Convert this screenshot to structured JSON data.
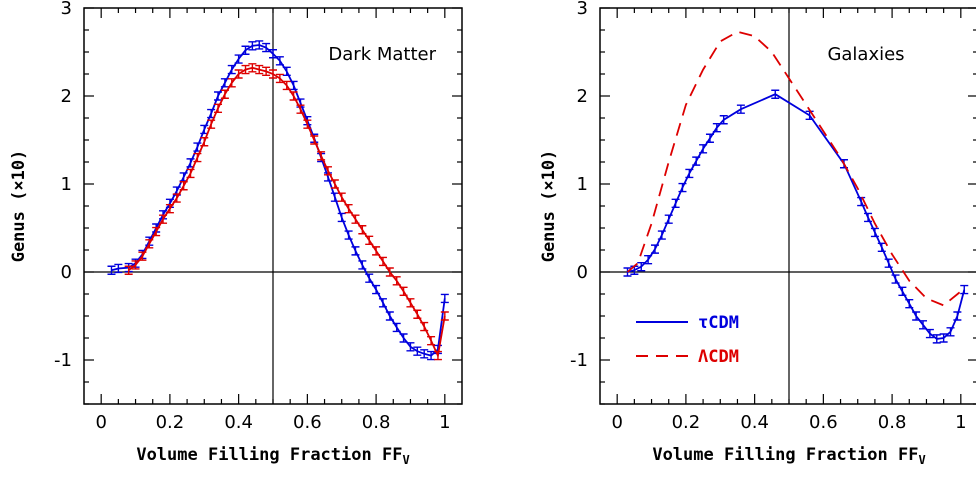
{
  "chart_data": [
    {
      "type": "line",
      "title": "Dark Matter",
      "xlabel": "Volume Filling Fraction FF",
      "xlabel_sub": "V",
      "ylabel": "Genus (×10)",
      "xlim": [
        -0.05,
        1.05
      ],
      "ylim": [
        -1.5,
        3
      ],
      "x_ticks": [
        0,
        0.2,
        0.4,
        0.6,
        0.8,
        1
      ],
      "x_tick_labels": [
        "0",
        "0.2",
        "0.4",
        "0.6",
        "0.8",
        "1"
      ],
      "y_ticks": [
        -1,
        0,
        1,
        2,
        3
      ],
      "y_tick_labels": [
        "-1",
        "0",
        "1",
        "2",
        "3"
      ],
      "reference_lines": {
        "y": 0,
        "x": 0.5
      },
      "series": [
        {
          "color": "#0000dd",
          "style": "solid",
          "errorbars": true,
          "points": [
            [
              0.03,
              0.02
            ],
            [
              0.05,
              0.04
            ],
            [
              0.08,
              0.05
            ],
            [
              0.1,
              0.1
            ],
            [
              0.12,
              0.2
            ],
            [
              0.14,
              0.35
            ],
            [
              0.16,
              0.5
            ],
            [
              0.18,
              0.65
            ],
            [
              0.2,
              0.78
            ],
            [
              0.22,
              0.92
            ],
            [
              0.24,
              1.08
            ],
            [
              0.26,
              1.24
            ],
            [
              0.28,
              1.42
            ],
            [
              0.3,
              1.62
            ],
            [
              0.32,
              1.8
            ],
            [
              0.34,
              2.0
            ],
            [
              0.36,
              2.15
            ],
            [
              0.38,
              2.3
            ],
            [
              0.4,
              2.42
            ],
            [
              0.42,
              2.52
            ],
            [
              0.44,
              2.57
            ],
            [
              0.46,
              2.58
            ],
            [
              0.48,
              2.55
            ],
            [
              0.5,
              2.48
            ],
            [
              0.52,
              2.4
            ],
            [
              0.54,
              2.28
            ],
            [
              0.56,
              2.12
            ],
            [
              0.58,
              1.92
            ],
            [
              0.6,
              1.72
            ],
            [
              0.62,
              1.52
            ],
            [
              0.64,
              1.3
            ],
            [
              0.66,
              1.08
            ],
            [
              0.68,
              0.85
            ],
            [
              0.7,
              0.62
            ],
            [
              0.72,
              0.42
            ],
            [
              0.74,
              0.24
            ],
            [
              0.76,
              0.08
            ],
            [
              0.78,
              -0.07
            ],
            [
              0.8,
              -0.2
            ],
            [
              0.82,
              -0.35
            ],
            [
              0.84,
              -0.5
            ],
            [
              0.86,
              -0.63
            ],
            [
              0.88,
              -0.75
            ],
            [
              0.9,
              -0.85
            ],
            [
              0.92,
              -0.9
            ],
            [
              0.94,
              -0.93
            ],
            [
              0.96,
              -0.95
            ],
            [
              0.98,
              -0.88
            ],
            [
              1.0,
              -0.3
            ]
          ]
        },
        {
          "color": "#dd0000",
          "style": "solid",
          "errorbars": true,
          "points": [
            [
              0.08,
              0.02
            ],
            [
              0.1,
              0.08
            ],
            [
              0.12,
              0.18
            ],
            [
              0.14,
              0.32
            ],
            [
              0.16,
              0.46
            ],
            [
              0.18,
              0.6
            ],
            [
              0.2,
              0.72
            ],
            [
              0.22,
              0.84
            ],
            [
              0.24,
              0.98
            ],
            [
              0.26,
              1.12
            ],
            [
              0.28,
              1.3
            ],
            [
              0.3,
              1.48
            ],
            [
              0.32,
              1.68
            ],
            [
              0.34,
              1.86
            ],
            [
              0.36,
              2.02
            ],
            [
              0.38,
              2.15
            ],
            [
              0.4,
              2.25
            ],
            [
              0.42,
              2.3
            ],
            [
              0.44,
              2.32
            ],
            [
              0.46,
              2.3
            ],
            [
              0.48,
              2.28
            ],
            [
              0.5,
              2.25
            ],
            [
              0.52,
              2.2
            ],
            [
              0.54,
              2.12
            ],
            [
              0.56,
              2.0
            ],
            [
              0.58,
              1.85
            ],
            [
              0.6,
              1.68
            ],
            [
              0.62,
              1.5
            ],
            [
              0.64,
              1.32
            ],
            [
              0.66,
              1.15
            ],
            [
              0.68,
              1.0
            ],
            [
              0.7,
              0.85
            ],
            [
              0.72,
              0.72
            ],
            [
              0.74,
              0.6
            ],
            [
              0.76,
              0.48
            ],
            [
              0.78,
              0.36
            ],
            [
              0.8,
              0.24
            ],
            [
              0.82,
              0.12
            ],
            [
              0.84,
              0.0
            ],
            [
              0.86,
              -0.1
            ],
            [
              0.88,
              -0.22
            ],
            [
              0.9,
              -0.35
            ],
            [
              0.92,
              -0.48
            ],
            [
              0.94,
              -0.62
            ],
            [
              0.96,
              -0.78
            ],
            [
              0.98,
              -0.95
            ],
            [
              1.0,
              -0.5
            ]
          ]
        }
      ]
    },
    {
      "type": "line",
      "title": "Galaxies",
      "xlabel": "Volume Filling Fraction FF",
      "xlabel_sub": "V",
      "ylabel": "Genus (×10)",
      "xlim": [
        -0.05,
        1.05
      ],
      "ylim": [
        -1.5,
        3
      ],
      "x_ticks": [
        0,
        0.2,
        0.4,
        0.6,
        0.8,
        1
      ],
      "x_tick_labels": [
        "0",
        "0.2",
        "0.4",
        "0.6",
        "0.8",
        "1"
      ],
      "y_ticks": [
        -1,
        0,
        1,
        2,
        3
      ],
      "y_tick_labels": [
        "-1",
        "0",
        "1",
        "2",
        "3"
      ],
      "reference_lines": {
        "y": 0,
        "x": 0.5
      },
      "legend": {
        "placement": "bottom-left"
      },
      "series": [
        {
          "name": "τCDM",
          "color": "#0000dd",
          "style": "solid",
          "errorbars": true,
          "points": [
            [
              0.03,
              0.0
            ],
            [
              0.05,
              0.02
            ],
            [
              0.07,
              0.06
            ],
            [
              0.09,
              0.14
            ],
            [
              0.11,
              0.26
            ],
            [
              0.13,
              0.42
            ],
            [
              0.15,
              0.6
            ],
            [
              0.17,
              0.78
            ],
            [
              0.19,
              0.96
            ],
            [
              0.21,
              1.12
            ],
            [
              0.23,
              1.26
            ],
            [
              0.25,
              1.4
            ],
            [
              0.27,
              1.52
            ],
            [
              0.29,
              1.64
            ],
            [
              0.31,
              1.73
            ],
            [
              0.36,
              1.85
            ],
            [
              0.46,
              2.02
            ],
            [
              0.56,
              1.78
            ],
            [
              0.66,
              1.23
            ],
            [
              0.71,
              0.8
            ],
            [
              0.73,
              0.62
            ],
            [
              0.75,
              0.45
            ],
            [
              0.77,
              0.28
            ],
            [
              0.79,
              0.1
            ],
            [
              0.81,
              -0.08
            ],
            [
              0.83,
              -0.22
            ],
            [
              0.85,
              -0.36
            ],
            [
              0.87,
              -0.5
            ],
            [
              0.89,
              -0.6
            ],
            [
              0.91,
              -0.7
            ],
            [
              0.93,
              -0.76
            ],
            [
              0.95,
              -0.75
            ],
            [
              0.97,
              -0.68
            ],
            [
              0.99,
              -0.5
            ],
            [
              1.01,
              -0.2
            ]
          ]
        },
        {
          "name": "ΛCDM",
          "color": "#dd0000",
          "style": "dashed",
          "errorbars": false,
          "points": [
            [
              0.03,
              0.0
            ],
            [
              0.06,
              0.1
            ],
            [
              0.1,
              0.55
            ],
            [
              0.15,
              1.25
            ],
            [
              0.2,
              1.9
            ],
            [
              0.25,
              2.3
            ],
            [
              0.3,
              2.62
            ],
            [
              0.35,
              2.73
            ],
            [
              0.4,
              2.68
            ],
            [
              0.45,
              2.5
            ],
            [
              0.5,
              2.2
            ],
            [
              0.55,
              1.9
            ],
            [
              0.6,
              1.6
            ],
            [
              0.65,
              1.3
            ],
            [
              0.7,
              0.95
            ],
            [
              0.75,
              0.55
            ],
            [
              0.8,
              0.2
            ],
            [
              0.85,
              -0.1
            ],
            [
              0.9,
              -0.3
            ],
            [
              0.95,
              -0.38
            ],
            [
              1.0,
              -0.22
            ]
          ]
        }
      ]
    }
  ]
}
